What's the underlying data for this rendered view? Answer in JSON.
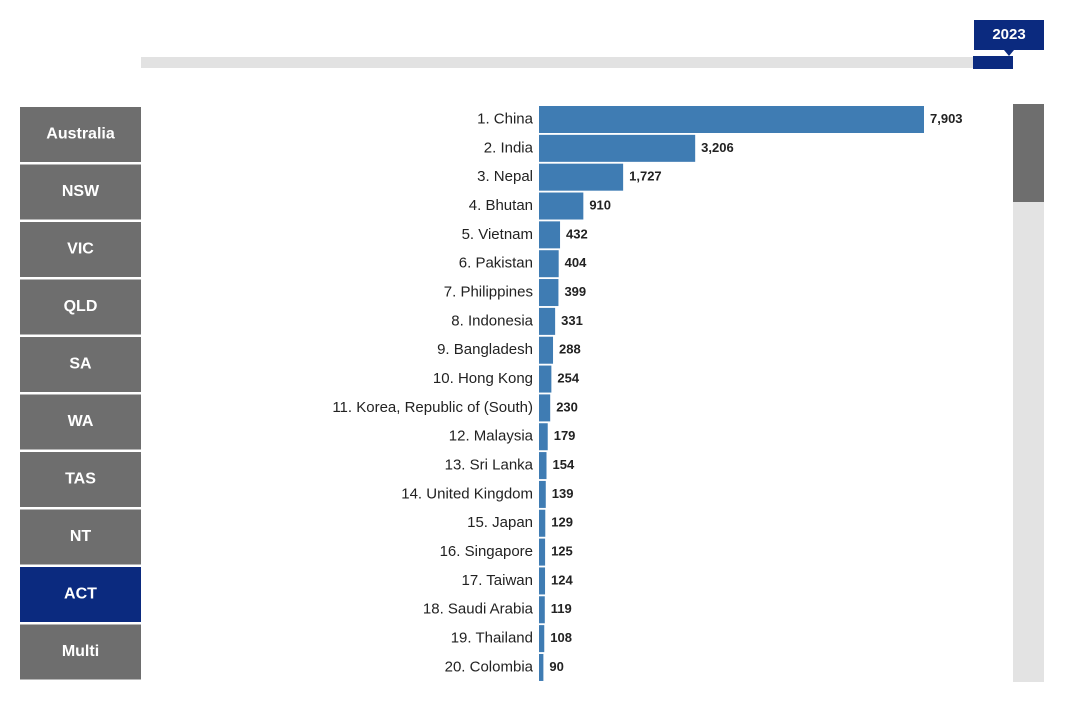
{
  "year": "2023",
  "regions": [
    "Australia",
    "NSW",
    "VIC",
    "QLD",
    "SA",
    "WA",
    "TAS",
    "NT",
    "ACT",
    "Multi"
  ],
  "selected_region": "ACT",
  "chart_data": {
    "type": "bar",
    "orientation": "horizontal",
    "color": "#3f7cb3",
    "categories": [
      "1. China",
      "2. India",
      "3. Nepal",
      "4. Bhutan",
      "5. Vietnam",
      "6. Pakistan",
      "7. Philippines",
      "8. Indonesia",
      "9. Bangladesh",
      "10. Hong Kong",
      "11. Korea, Republic of (South)",
      "12. Malaysia",
      "13. Sri Lanka",
      "14. United Kingdom",
      "15. Japan",
      "16. Singapore",
      "17. Taiwan",
      "18. Saudi Arabia",
      "19. Thailand",
      "20. Colombia"
    ],
    "values": [
      7903,
      3206,
      1727,
      910,
      432,
      404,
      399,
      331,
      288,
      254,
      230,
      179,
      154,
      139,
      129,
      125,
      124,
      119,
      108,
      90
    ],
    "value_labels": [
      "7,903",
      "3,206",
      "1,727",
      "910",
      "432",
      "404",
      "399",
      "331",
      "288",
      "254",
      "230",
      "179",
      "154",
      "139",
      "129",
      "125",
      "124",
      "119",
      "108",
      "90"
    ]
  }
}
